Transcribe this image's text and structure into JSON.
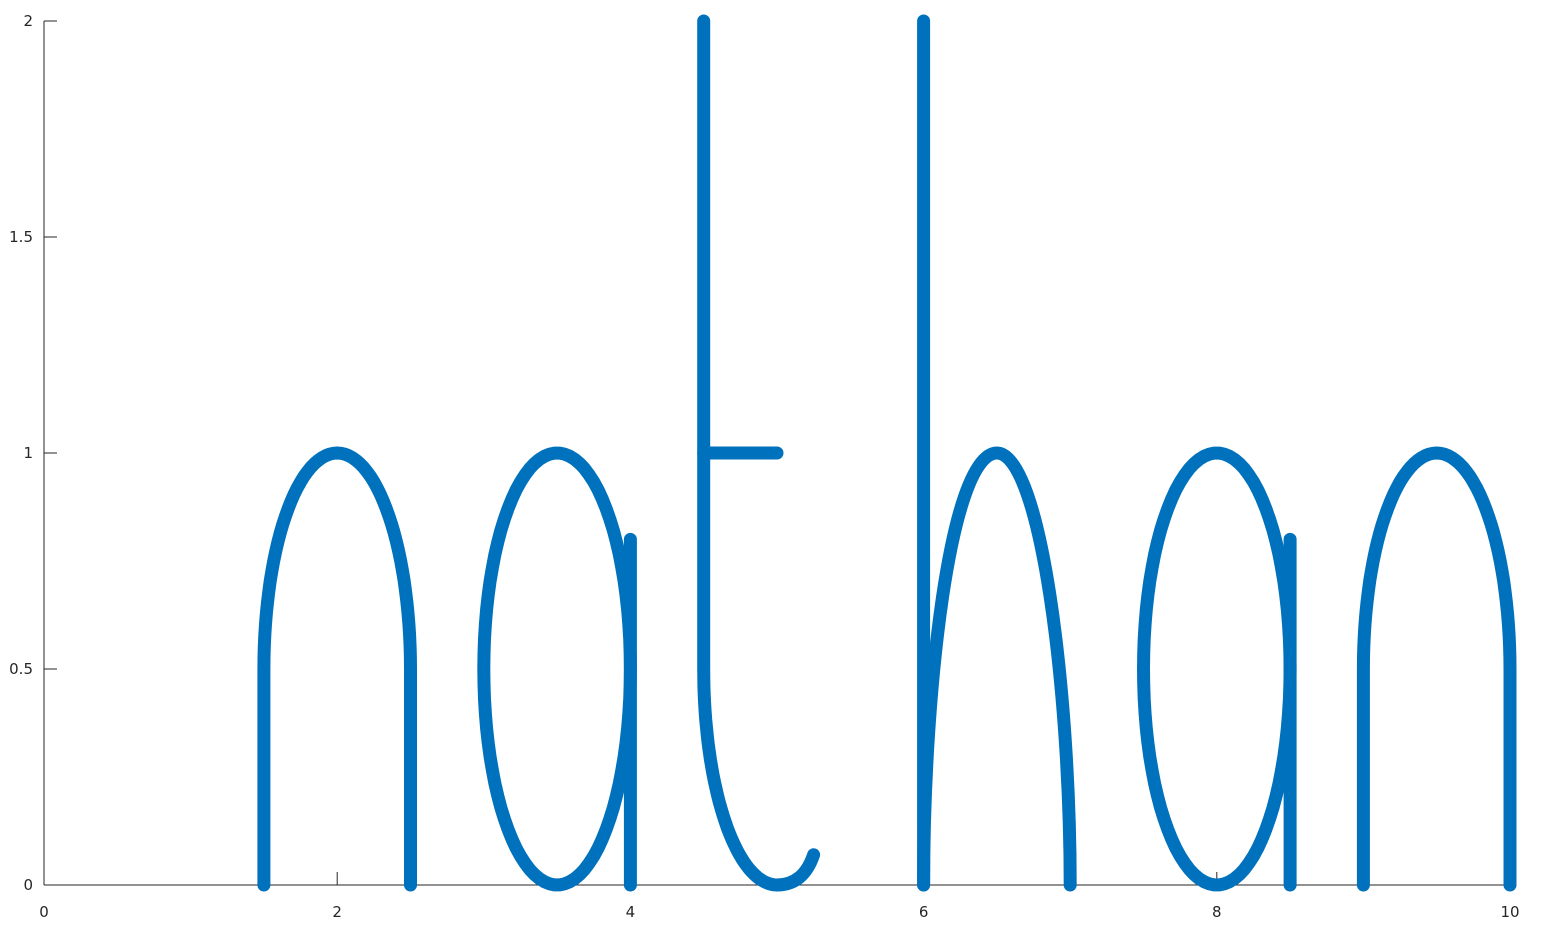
{
  "chart_data": {
    "type": "line",
    "title": "",
    "xlabel": "",
    "ylabel": "",
    "xlim": [
      0,
      10
    ],
    "ylim": [
      0,
      2
    ],
    "grid": false,
    "color": "#0072BD",
    "x_ticks": [
      "0",
      "2",
      "4",
      "6",
      "8",
      "10"
    ],
    "y_ticks": [
      "0",
      "0.5",
      "1",
      "1.5",
      "2"
    ],
    "glyphs": [
      {
        "letter": "n",
        "strokes": [
          {
            "kind": "arch",
            "left": 1.5,
            "right": 2.5,
            "base": 0,
            "shoulder": 0.5,
            "top": 1
          }
        ]
      },
      {
        "letter": "a",
        "strokes": [
          {
            "kind": "ellipse",
            "cx": 3.5,
            "cy": 0.5,
            "rx": 0.5,
            "ry": 0.5
          },
          {
            "kind": "line",
            "x": [
              4,
              4
            ],
            "y": [
              0,
              0.8
            ]
          }
        ]
      },
      {
        "letter": "t",
        "strokes": [
          {
            "kind": "t-stem",
            "x": 4.5,
            "top": 2,
            "hook_end_x": 5.25,
            "hook_end_y": 0.07
          },
          {
            "kind": "line",
            "x": [
              4.5,
              5
            ],
            "y": [
              1,
              1
            ]
          }
        ]
      },
      {
        "letter": "h",
        "strokes": [
          {
            "kind": "line",
            "x": [
              6,
              6
            ],
            "y": [
              0,
              2
            ]
          },
          {
            "kind": "h-arch",
            "left": 6,
            "right": 7,
            "top_x": 6.5,
            "top": 1
          }
        ]
      },
      {
        "letter": "a",
        "strokes": [
          {
            "kind": "ellipse",
            "cx": 8,
            "cy": 0.5,
            "rx": 0.5,
            "ry": 0.5
          },
          {
            "kind": "line",
            "x": [
              8.5,
              8.5
            ],
            "y": [
              0,
              0.8
            ]
          }
        ]
      },
      {
        "letter": "n",
        "strokes": [
          {
            "kind": "arch",
            "left": 9,
            "right": 10,
            "base": 0,
            "shoulder": 0.5,
            "top": 1
          }
        ]
      }
    ]
  }
}
